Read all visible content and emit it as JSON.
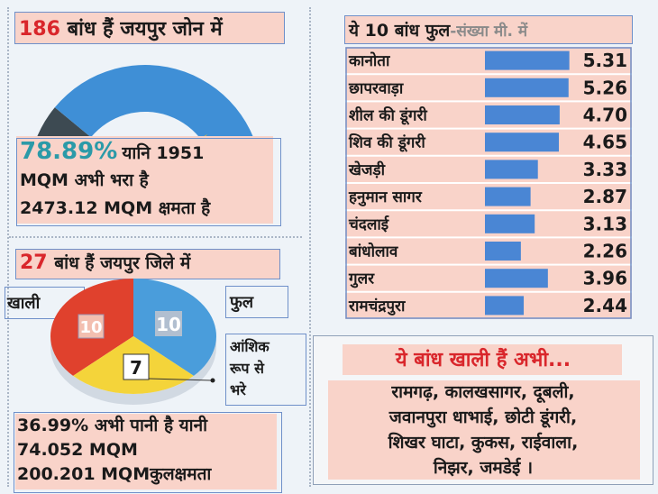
{
  "left_top": {
    "title_num": "186",
    "title_rest": "बांध हैं जयपुर जोन में",
    "percent": "78.89%",
    "line1_rest": "यानि 1951",
    "line2": "MQM अभी भरा है",
    "line3": "2473.12 MQM क्षमता है"
  },
  "left_bottom": {
    "title_num": "27",
    "title_rest": "बांध हैं जयपुर जिले में",
    "label_empty": "खाली",
    "label_full": "फुल",
    "label_partial": [
      "आंशिक",
      "रूप से",
      "भरे"
    ],
    "line1": "36.99% अभी पानी है यानी",
    "line2": "74.052 MQM",
    "line3": "200.201 MQMकुलक्षमता"
  },
  "right_bottom": {
    "title": "ये बांध खाली हैं अभी...",
    "lines": [
      "रामगढ़, कालखसागर, दूबली,",
      "जवानपुरा धाभाई, छोटी डूंगरी,",
      "शिखर घाटा, कुकस, राईवाला,",
      "निझर, जमडेई ।"
    ]
  },
  "colors": {
    "pink": "#f9d3c9",
    "bar_blue": "#4a86d4",
    "gauge_blue": "#3f8fd6",
    "gauge_dark": "#3d4a52",
    "needle_yellow": "#f2c230",
    "pie_red": "#e0412d",
    "pie_blue": "#4a9ddb",
    "pie_yellow": "#f4d43a",
    "title_red": "#d9262b"
  },
  "chart_data": [
    {
      "type": "bar",
      "orientation": "horizontal",
      "title_main": "ये 10 बांध फुल",
      "title_sub": "-संख्या मी. में",
      "categories": [
        "कानोता",
        "छापरवाड़ा",
        "शील की डूंगरी",
        "शिव की डूंगरी",
        "खेजड़ी",
        "हनुमान सागर",
        "चंदलाई",
        "बांधोलाव",
        "गुलर",
        "रामचंद्रपुरा"
      ],
      "values": [
        5.31,
        5.26,
        4.7,
        4.65,
        3.33,
        2.87,
        3.13,
        2.26,
        3.96,
        2.44
      ],
      "value_labels": [
        "5.31",
        "5.26",
        "4.70",
        "4.65",
        "3.33",
        "2.87",
        "3.13",
        "2.26",
        "3.96",
        "2.44"
      ],
      "xlim": [
        0,
        5.5
      ],
      "grid": false
    },
    {
      "type": "pie",
      "labels": [
        "खाली",
        "फुल",
        "आंशिक रूप से भरे"
      ],
      "values": [
        10,
        10,
        7
      ],
      "value_labels": [
        "10",
        "10",
        "7"
      ]
    },
    {
      "type": "gauge",
      "value_percent": 78.89
    }
  ]
}
